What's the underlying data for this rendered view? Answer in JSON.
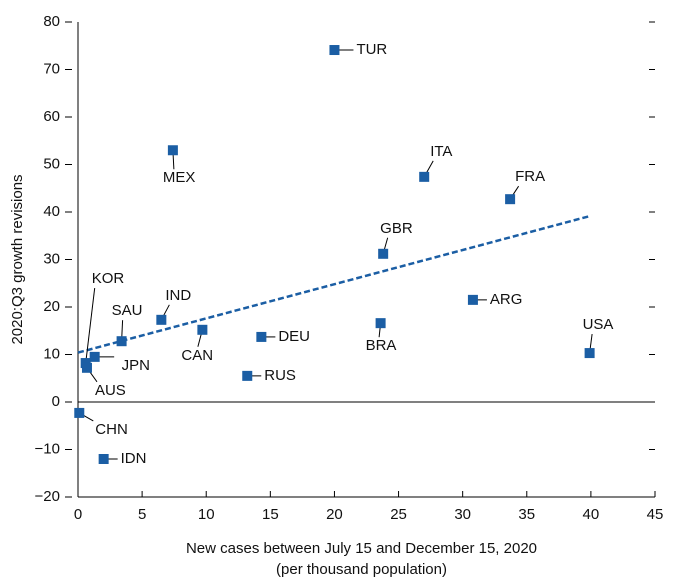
{
  "chart_data": {
    "type": "scatter",
    "ylabel": "2020:Q3 growth revisions",
    "xlabel": [
      "New cases between July 15 and December 15, 2020",
      "(per thousand population)"
    ],
    "color": "#1b5ea4",
    "series": [
      {
        "labels": [
          "TUR",
          "MEX",
          "ITA",
          "FRA",
          "GBR",
          "IND",
          "SAU",
          "CAN",
          "DEU",
          "BRA",
          "ARG",
          "USA",
          "RUS",
          "KOR",
          "JPN",
          "AUS",
          "CHN",
          "IDN"
        ],
        "x": [
          20.0,
          7.4,
          27.0,
          33.7,
          23.8,
          6.5,
          3.4,
          9.7,
          14.3,
          23.6,
          30.8,
          39.9,
          13.2,
          0.6,
          1.3,
          0.7,
          0.1,
          2.0
        ],
        "values": [
          74.1,
          53.0,
          47.4,
          42.7,
          31.2,
          17.3,
          12.8,
          15.2,
          13.7,
          16.6,
          21.5,
          10.3,
          5.5,
          8.2,
          9.5,
          7.2,
          -2.3,
          -12.0
        ]
      }
    ],
    "trend": {
      "x": [
        0,
        40
      ],
      "values": [
        10.4,
        39.2
      ]
    },
    "xlim": [
      0,
      45
    ],
    "xticks": [
      0,
      5,
      10,
      15,
      20,
      25,
      30,
      35,
      40,
      45
    ],
    "ylim": [
      -20,
      80
    ],
    "yticks": [
      {
        "value": -20,
        "label": "−20"
      },
      {
        "value": -10,
        "label": "−10"
      },
      0,
      10,
      20,
      30,
      40,
      50,
      60,
      70,
      80
    ]
  }
}
